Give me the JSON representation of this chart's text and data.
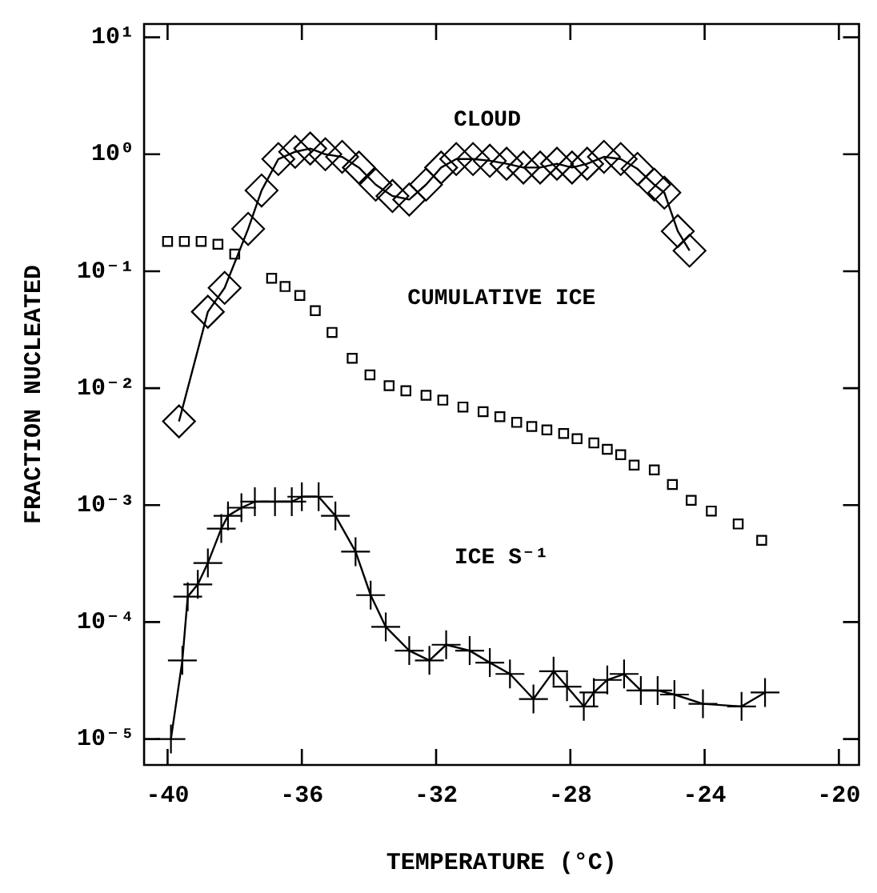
{
  "chart_data": {
    "type": "line",
    "xlabel": "TEMPERATURE (°C)",
    "ylabel": "FRACTION NUCLEATED",
    "xlim": [
      -40.7,
      -19.4
    ],
    "xticks": [
      -40,
      -36,
      -32,
      -28,
      -24,
      -20
    ],
    "ylim": [
      6e-06,
      13
    ],
    "yticks": [
      {
        "value": 1e-05,
        "label": "10⁻⁵"
      },
      {
        "value": 0.0001,
        "label": "10⁻⁴"
      },
      {
        "value": 0.001,
        "label": "10⁻³"
      },
      {
        "value": 0.01,
        "label": "10⁻²"
      },
      {
        "value": 0.1,
        "label": "10⁻¹"
      },
      {
        "value": 1,
        "label": "10⁰"
      },
      {
        "value": 10,
        "label": "10¹"
      }
    ],
    "log": "y",
    "grid": false,
    "legend": false,
    "series": [
      {
        "name": "CLOUD",
        "type": "line",
        "marker": "diamond",
        "line_style": "solid",
        "color": "#000000",
        "x": [
          -39.66,
          -38.8,
          -38.3,
          -37.6,
          -37.2,
          -36.7,
          -36.2,
          -35.75,
          -35.3,
          -34.8,
          -34.3,
          -33.8,
          -33.3,
          -32.8,
          -32.3,
          -31.85,
          -31.4,
          -30.9,
          -30.4,
          -29.9,
          -29.4,
          -28.9,
          -28.4,
          -27.95,
          -27.5,
          -27.0,
          -26.5,
          -26.0,
          -25.5,
          -25.2,
          -24.8,
          -24.45
        ],
        "values": [
          0.0052,
          0.045,
          0.072,
          0.23,
          0.49,
          0.91,
          1.05,
          1.12,
          1.0,
          0.95,
          0.77,
          0.55,
          0.44,
          0.41,
          0.55,
          0.77,
          0.91,
          0.91,
          0.88,
          0.83,
          0.77,
          0.77,
          0.83,
          0.77,
          0.83,
          0.95,
          0.91,
          0.75,
          0.55,
          0.47,
          0.22,
          0.15
        ]
      },
      {
        "name": "CUMULATIVE ICE",
        "type": "scatter",
        "marker": "square",
        "color": "#000000",
        "x": [
          -40,
          -39.5,
          -39,
          -38.5,
          -38,
          -36.9,
          -36.5,
          -36.06,
          -35.6,
          -35.1,
          -34.5,
          -33.97,
          -33.4,
          -32.9,
          -32.3,
          -31.8,
          -31.2,
          -30.6,
          -30.1,
          -29.6,
          -29.15,
          -28.7,
          -28.2,
          -27.8,
          -27.3,
          -26.9,
          -26.5,
          -26.1,
          -25.5,
          -24.96,
          -24.4,
          -23.8,
          -23.0,
          -22.3
        ],
        "values": [
          0.18,
          0.18,
          0.18,
          0.17,
          0.14,
          0.087,
          0.074,
          0.062,
          0.046,
          0.03,
          0.018,
          0.013,
          0.0105,
          0.0095,
          0.0087,
          0.0079,
          0.0069,
          0.0063,
          0.0057,
          0.0051,
          0.0047,
          0.0044,
          0.0041,
          0.0037,
          0.0034,
          0.003,
          0.0027,
          0.0022,
          0.002,
          0.0015,
          0.0011,
          0.00089,
          0.00069,
          0.0005
        ]
      },
      {
        "name": "ICE S⁻¹",
        "type": "line",
        "marker": "cross",
        "line_style": "solid",
        "color": "#000000",
        "x": [
          -39.9,
          -39.56,
          -39.4,
          -39.1,
          -38.8,
          -38.4,
          -38.2,
          -37.8,
          -37.4,
          -36.8,
          -36.3,
          -36.0,
          -35.5,
          -35.0,
          -34.4,
          -33.95,
          -33.5,
          -32.8,
          -32.2,
          -31.7,
          -31.0,
          -30.4,
          -29.8,
          -29.1,
          -28.5,
          -28.1,
          -27.6,
          -27.3,
          -26.9,
          -26.4,
          -25.9,
          -25.4,
          -24.9,
          -24.05,
          -22.9,
          -22.2
        ],
        "values": [
          1e-05,
          4.7e-05,
          0.000165,
          0.00021,
          0.00032,
          0.00063,
          0.00081,
          0.00095,
          0.00107,
          0.00107,
          0.00107,
          0.00118,
          0.00118,
          0.00081,
          0.0004,
          0.00017,
          9.1e-05,
          5.7e-05,
          4.7e-05,
          6.4e-05,
          5.7e-05,
          4.5e-05,
          3.6e-05,
          2.2e-05,
          3.8e-05,
          2.8e-05,
          1.9e-05,
          2.5e-05,
          3.2e-05,
          3.6e-05,
          2.6e-05,
          2.6e-05,
          2.4e-05,
          2e-05,
          1.9e-05,
          2.5e-05
        ]
      }
    ]
  }
}
